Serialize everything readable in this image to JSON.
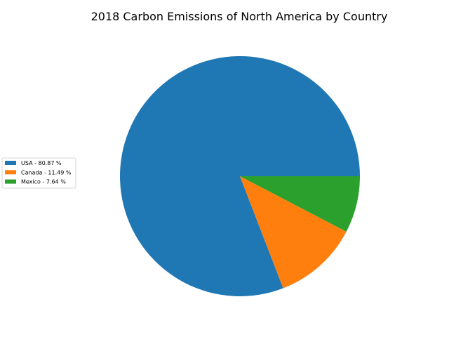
{
  "chart_data": {
    "type": "pie",
    "title": "2018 Carbon Emissions of North America by Country",
    "start_angle_deg": 0,
    "direction": "counterclockwise",
    "slices": [
      {
        "label": "USA",
        "value": 80.87,
        "legend": "USA - 80.87 %",
        "color": "#1f77b4"
      },
      {
        "label": "Canada",
        "value": 11.49,
        "legend": "Canada - 11.49 %",
        "color": "#ff7f0e"
      },
      {
        "label": "Mexico",
        "value": 7.64,
        "legend": "Mexico - 7.64 %",
        "color": "#2ca02c"
      }
    ],
    "legend_placement": "center-left"
  }
}
